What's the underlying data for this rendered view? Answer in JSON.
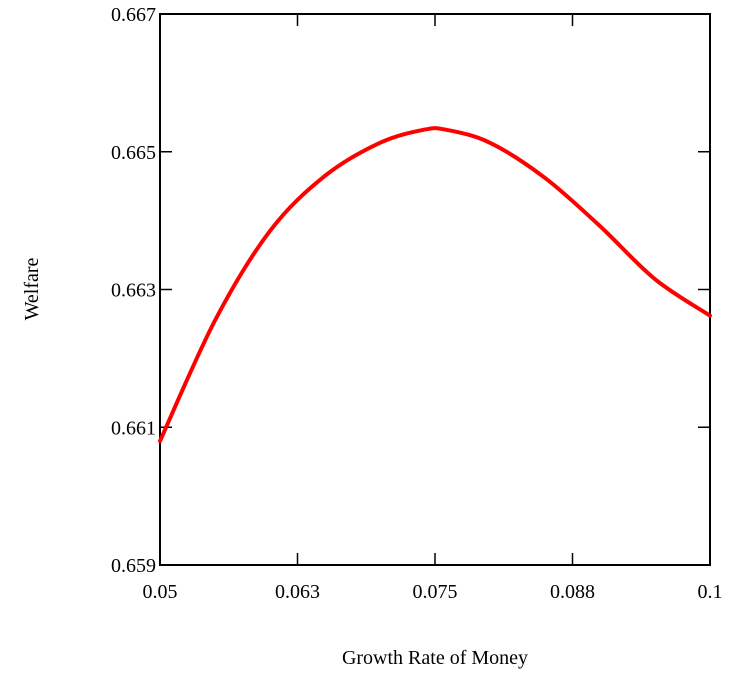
{
  "chart_data": {
    "type": "line",
    "title": "",
    "xlabel": "Growth Rate of Money",
    "ylabel": "Welfare",
    "xlim": [
      0.05,
      0.1
    ],
    "ylim": [
      0.659,
      0.667
    ],
    "x_tick_values": [
      0.05,
      0.0625,
      0.075,
      0.0875,
      0.1
    ],
    "x_tick_labels": [
      "0.05",
      "0.063",
      "0.075",
      "0.088",
      "0.1"
    ],
    "y_tick_values": [
      0.659,
      0.661,
      0.663,
      0.665,
      0.667
    ],
    "y_tick_labels": [
      "0.659",
      "0.661",
      "0.663",
      "0.665",
      "0.667"
    ],
    "grid": false,
    "line_color": "#ff0000",
    "axis_color": "#000000",
    "series": [
      {
        "x": [
          0.05,
          0.055,
          0.06,
          0.065,
          0.07,
          0.074,
          0.076,
          0.08,
          0.085,
          0.09,
          0.095,
          0.1
        ],
        "y": [
          0.6608,
          0.66255,
          0.66385,
          0.66465,
          0.66513,
          0.66532,
          0.66532,
          0.66513,
          0.66462,
          0.66392,
          0.66315,
          0.66262
        ]
      }
    ]
  }
}
